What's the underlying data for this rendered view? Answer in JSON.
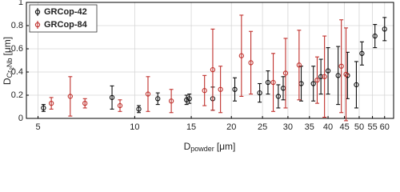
{
  "chart_data": {
    "type": "scatter",
    "x_label": {
      "main": "D",
      "sub": "powder",
      "unit": "[μm]"
    },
    "y_label": {
      "main": "D",
      "sub1": "Cr",
      "sub2": "2",
      "sub3": "Nb",
      "unit": "[μm]"
    },
    "log_x": true,
    "grid": true,
    "legend": "upper-left",
    "xlim": [
      4.6,
      64
    ],
    "ylim": [
      0,
      1
    ],
    "xticks": [
      5,
      10,
      15,
      20,
      25,
      30,
      35,
      40,
      45,
      50,
      55,
      60
    ],
    "yticks": [
      0,
      0.2,
      0.4,
      0.6,
      0.8,
      1
    ],
    "series": [
      {
        "name": "GRCop-42",
        "color": "#111111",
        "x": [
          5.2,
          8.5,
          10.3,
          11.8,
          14.5,
          14.8,
          17.5,
          20.5,
          24.5,
          26,
          28,
          29,
          33,
          36,
          38,
          40,
          43,
          46,
          49,
          51,
          56,
          60
        ],
        "values": [
          0.09,
          0.18,
          0.08,
          0.17,
          0.16,
          0.17,
          0.17,
          0.25,
          0.22,
          0.31,
          0.19,
          0.26,
          0.3,
          0.3,
          0.36,
          0.41,
          0.37,
          0.37,
          0.29,
          0.56,
          0.71,
          0.77
        ],
        "errors": [
          0.03,
          0.1,
          0.03,
          0.05,
          0.04,
          0.04,
          0.1,
          0.1,
          0.08,
          0.1,
          0.1,
          0.1,
          0.15,
          0.15,
          0.15,
          0.2,
          0.25,
          0.2,
          0.2,
          0.1,
          0.1,
          0.1
        ]
      },
      {
        "name": "GRCop-84",
        "color": "#c0302c",
        "x": [
          5.5,
          6.3,
          7,
          9,
          11,
          13,
          16.5,
          17.5,
          18.5,
          21.5,
          23,
          27,
          29.5,
          32.5,
          37,
          39,
          44,
          45.5
        ],
        "values": [
          0.13,
          0.19,
          0.13,
          0.11,
          0.21,
          0.15,
          0.24,
          0.42,
          0.25,
          0.54,
          0.48,
          0.31,
          0.39,
          0.46,
          0.33,
          0.36,
          0.45,
          0.38
        ],
        "errors": [
          0.05,
          0.17,
          0.04,
          0.05,
          0.15,
          0.1,
          0.13,
          0.35,
          0.2,
          0.35,
          0.27,
          0.25,
          0.3,
          0.3,
          0.2,
          0.35,
          0.4,
          0.4
        ]
      }
    ]
  }
}
